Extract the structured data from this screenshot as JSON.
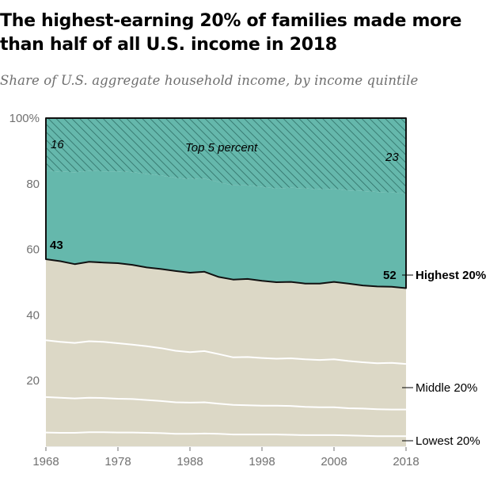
{
  "header": {
    "title": "The highest-earning 20% of families made more than half of all U.S. income in 2018",
    "subtitle": "Share of U.S. aggregate household income, by income quintile"
  },
  "colors": {
    "highest": "#65b8ac",
    "rest": "#dcd8c6",
    "hatch": "#2f6f66",
    "outline": "#111111",
    "divider": "#ffffff"
  },
  "chart_data": {
    "type": "area",
    "stacked": true,
    "x": [
      1968,
      1970,
      1972,
      1974,
      1976,
      1978,
      1980,
      1982,
      1984,
      1986,
      1988,
      1990,
      1992,
      1994,
      1996,
      1998,
      2000,
      2002,
      2004,
      2006,
      2008,
      2010,
      2012,
      2014,
      2016,
      2018
    ],
    "xticks": [
      1968,
      1978,
      1988,
      1998,
      2008,
      2018
    ],
    "ylim": [
      0,
      100
    ],
    "yticks": [
      {
        "value": 0,
        "label": ""
      },
      {
        "value": 20,
        "label": "20"
      },
      {
        "value": 40,
        "label": "40"
      },
      {
        "value": 60,
        "label": "60"
      },
      {
        "value": 80,
        "label": "80"
      },
      {
        "value": 100,
        "label": "100%"
      }
    ],
    "boundaries": {
      "lowest_top": [
        4.2,
        4.1,
        4.1,
        4.3,
        4.3,
        4.2,
        4.2,
        4.1,
        4.0,
        3.8,
        3.8,
        3.9,
        3.8,
        3.6,
        3.6,
        3.6,
        3.6,
        3.5,
        3.4,
        3.4,
        3.4,
        3.3,
        3.2,
        3.1,
        3.1,
        3.1
      ],
      "second_top": [
        15.0,
        14.8,
        14.6,
        14.8,
        14.7,
        14.5,
        14.4,
        14.1,
        13.8,
        13.4,
        13.3,
        13.4,
        13.0,
        12.6,
        12.5,
        12.4,
        12.4,
        12.3,
        12.0,
        11.9,
        11.9,
        11.6,
        11.5,
        11.3,
        11.2,
        11.2
      ],
      "middle_top": [
        32.3,
        31.8,
        31.5,
        32.0,
        31.8,
        31.4,
        31.0,
        30.5,
        29.9,
        29.1,
        28.7,
        29.0,
        28.1,
        27.1,
        27.2,
        26.9,
        26.7,
        26.8,
        26.5,
        26.3,
        26.5,
        26.0,
        25.6,
        25.3,
        25.4,
        25.1
      ],
      "fourth_top": [
        57.0,
        56.4,
        55.5,
        56.2,
        56.0,
        55.8,
        55.3,
        54.5,
        54.0,
        53.4,
        52.9,
        53.2,
        51.6,
        50.8,
        51.0,
        50.4,
        50.0,
        50.1,
        49.6,
        49.6,
        50.1,
        49.6,
        49.0,
        48.7,
        48.6,
        48.2
      ],
      "top5_bottom": [
        84.0,
        83.7,
        83.5,
        83.9,
        83.8,
        83.8,
        83.5,
        83.0,
        82.5,
        81.8,
        81.4,
        81.6,
        80.5,
        79.5,
        79.5,
        79.0,
        78.6,
        78.8,
        78.6,
        78.3,
        78.5,
        78.0,
        77.8,
        77.5,
        77.4,
        77.0
      ]
    },
    "series": [
      {
        "name": "Highest 20%",
        "start": 43,
        "end": 52
      },
      {
        "name": "Middle 20%"
      },
      {
        "name": "Lowest 20%"
      },
      {
        "name": "Top 5 percent",
        "start": 16,
        "end": 23
      }
    ]
  },
  "labels": {
    "top5_start": "16",
    "top5_end": "23",
    "top5_name": "Top 5 percent",
    "highest_start": "43",
    "highest_end": "52",
    "highest_name": "Highest 20%",
    "middle_name": "Middle 20%",
    "lowest_name": "Lowest 20%"
  }
}
